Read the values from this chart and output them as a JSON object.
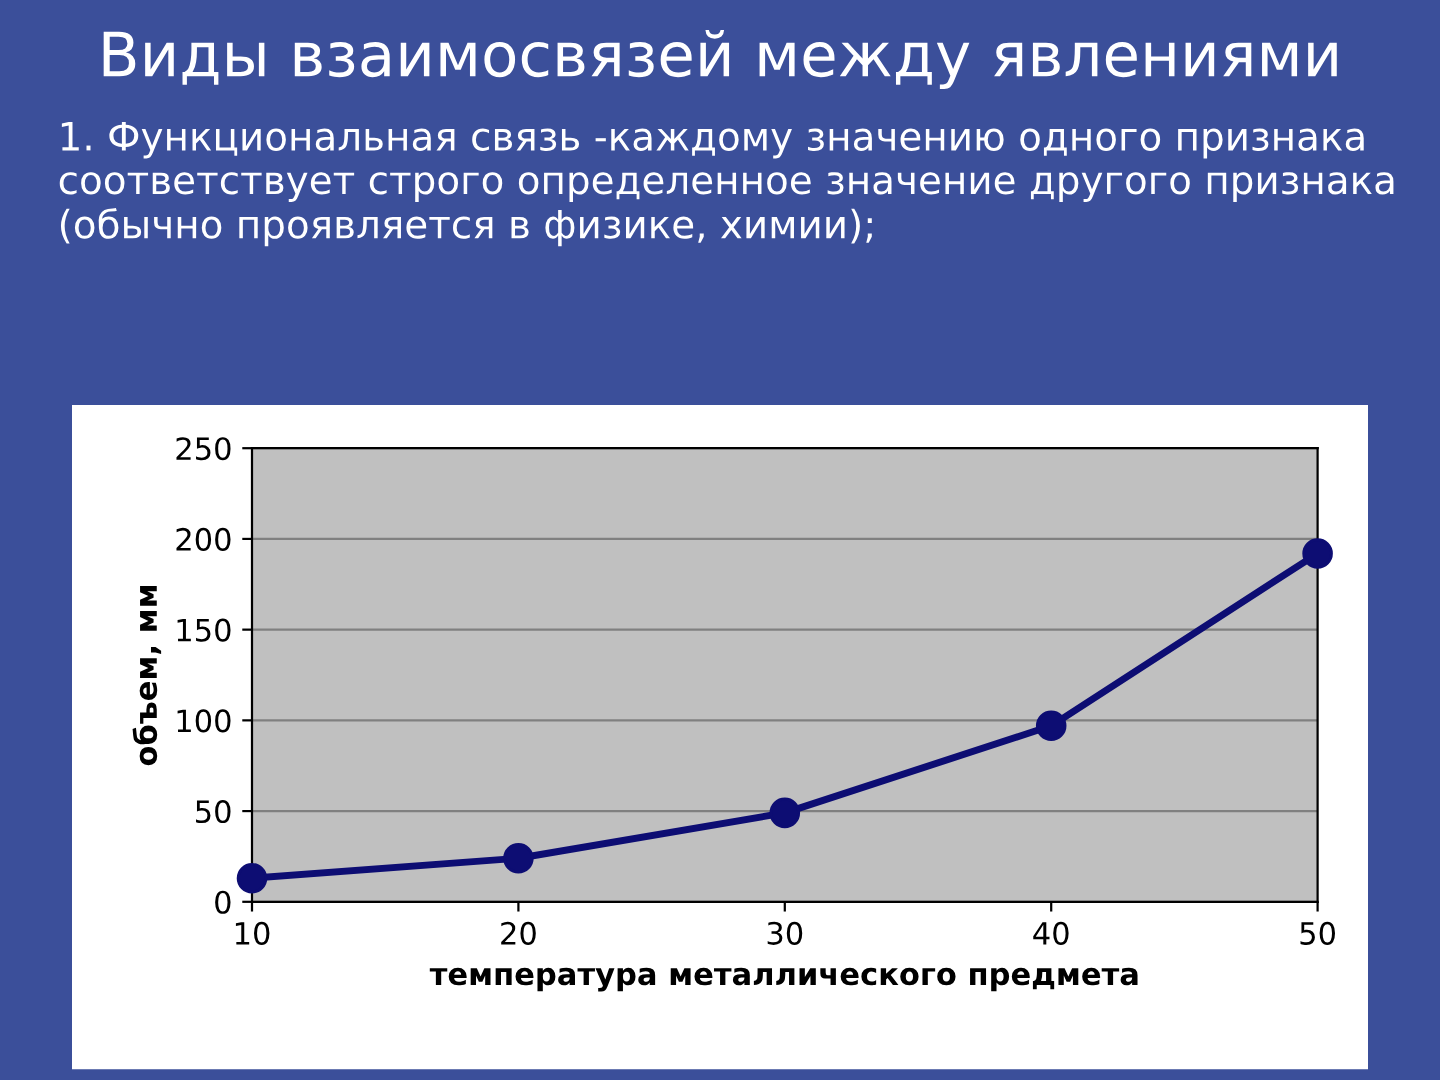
{
  "chart_data": {
    "type": "line",
    "title": "Виды взаимосвязей между явлениями",
    "subtitle": "1. Функциональная связь -каждому значению одного признака соответствует строго определенное значение другого признака (обычно проявляется в физике, химии);",
    "xlabel": "температура металлического предмета",
    "ylabel": "объем, мм",
    "x": [
      10,
      20,
      30,
      40,
      50
    ],
    "series": [
      {
        "color": "#0d0d73",
        "values": [
          13,
          24,
          49,
          97,
          192
        ]
      }
    ],
    "xlim": [
      10,
      50
    ],
    "xticks": [
      10,
      20,
      30,
      40,
      50
    ],
    "ylim": [
      0,
      250
    ],
    "yticks": [
      0,
      50,
      100,
      150,
      200,
      250
    ],
    "grid": "y",
    "marker": "circle",
    "line_style": "solid",
    "legend": false
  }
}
